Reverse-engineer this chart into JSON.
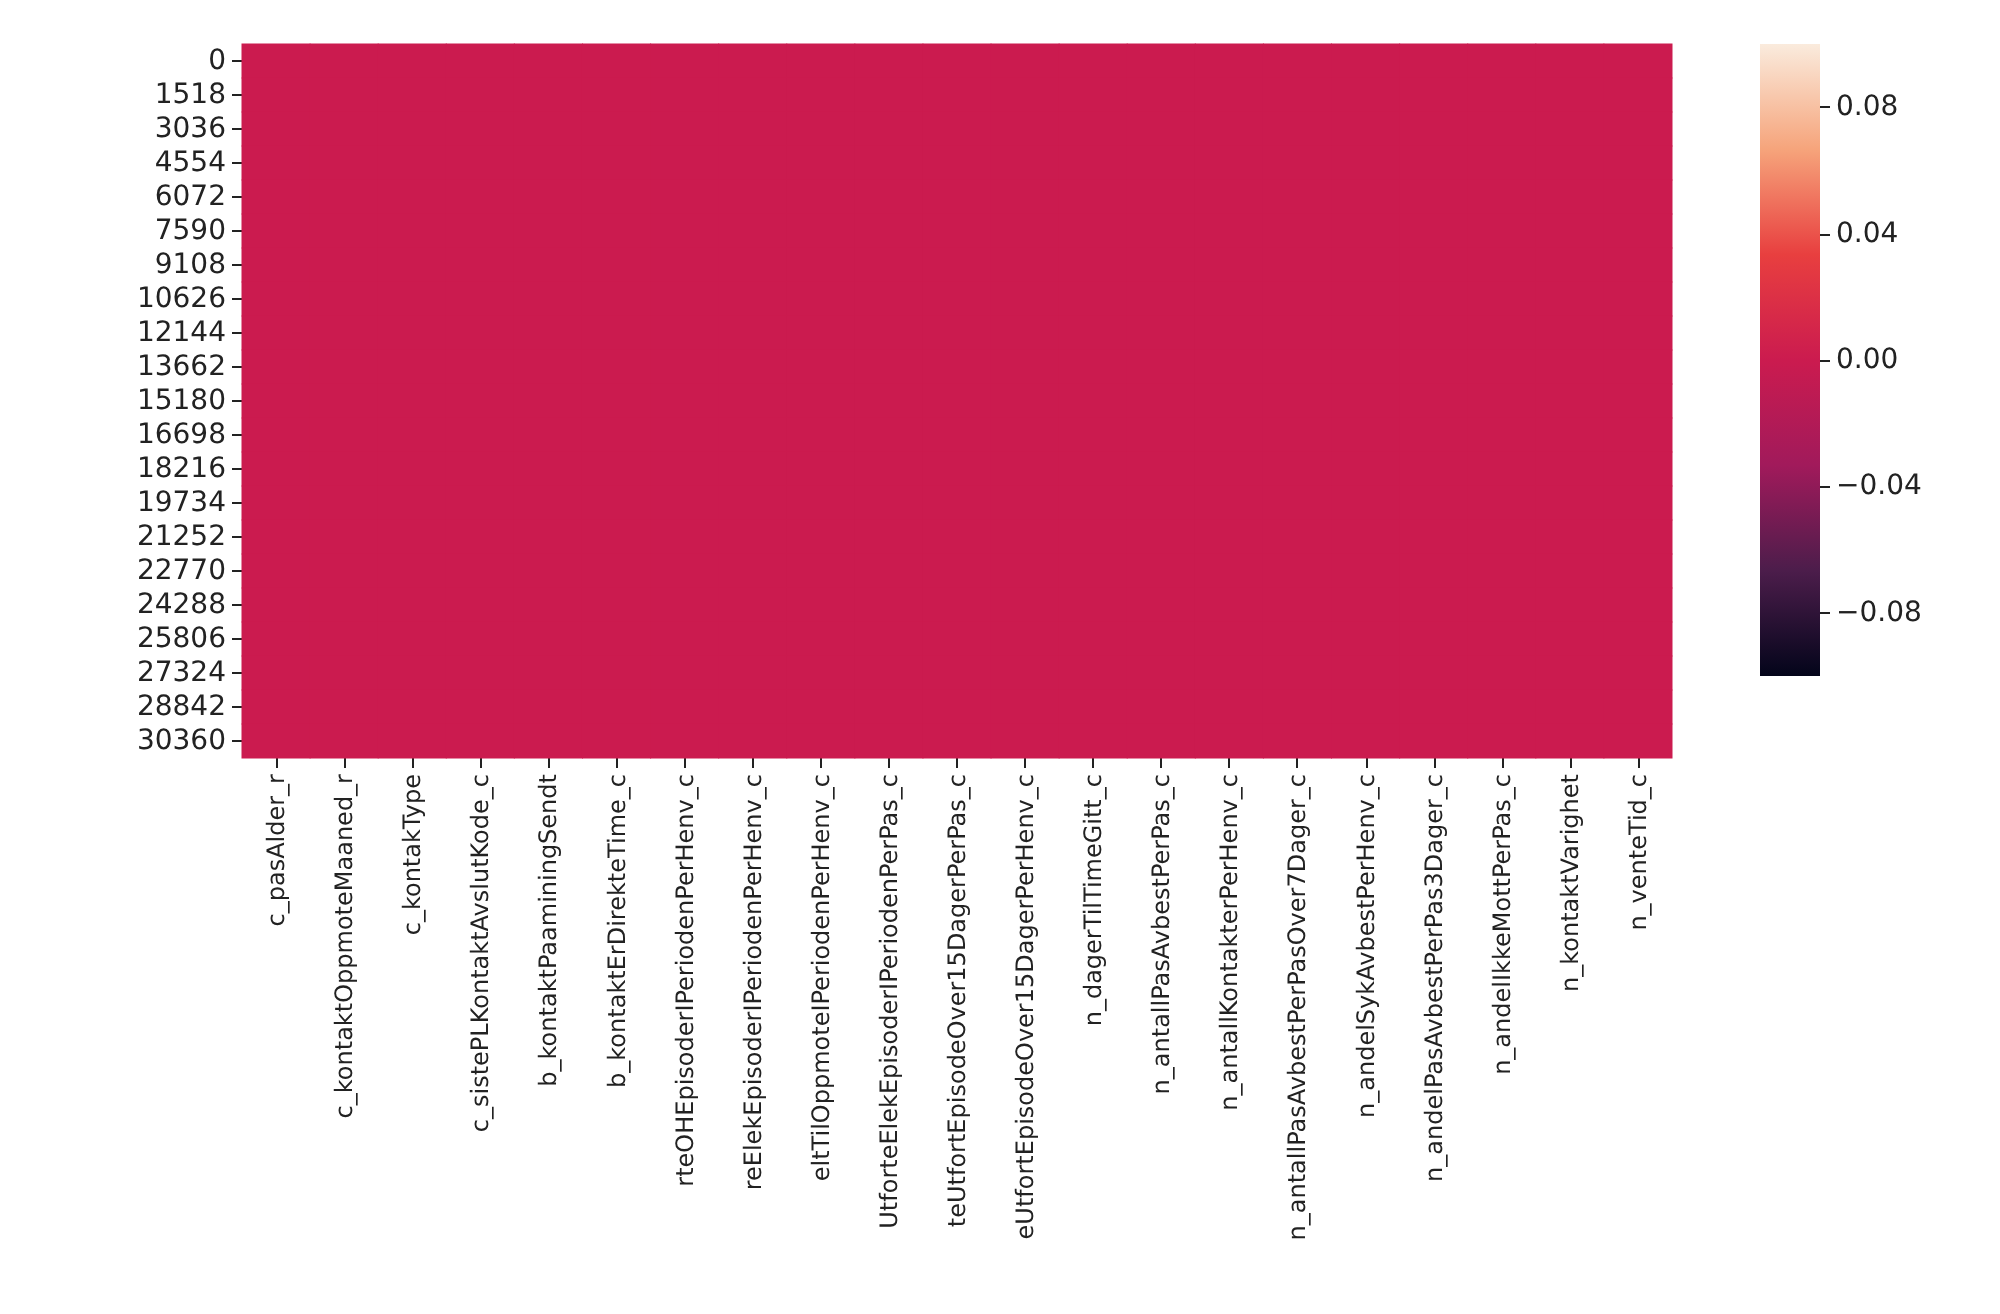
{
  "chart_data": {
    "type": "heatmap",
    "categories": [
      "c_pasAlder_r",
      "c_kontaktOppmoteMaaned_r",
      "c_kontakType",
      "c_sistePLKontaktAvslutKode_c",
      "b_kontaktPaaminingSendt",
      "b_kontaktErDirekteTime_c",
      "rteOHEpisoderIPeriodenPerHenv_c",
      "reElekEpisoderIPeriodenPerHenv_c",
      "eltTilOppmoteIPeriodenPerHenv_c",
      "UtforteElekEpisoderIPeriodenPerPas_c",
      "teUtfortEpisodeOver15DagerPerPas_c",
      "eUtfortEpisodeOver15DagerPerHenv_c",
      "n_dagerTilTimeGitt_c",
      "n_antallPasAvbestPerPas_c",
      "n_antallKontakterPerHenv_c",
      "n_antallPasAvbestPerPasOver7Dager_c",
      "n_andelSykAvbestPerHenv_c",
      "n_andelPasAvbestPerPas3Dager_c",
      "n_andelIkkeMottPerPas_c",
      "n_kontaktVarighet",
      "n_venteTid_c"
    ],
    "y_categories": [
      "0",
      "1518",
      "3036",
      "4554",
      "6072",
      "7590",
      "9108",
      "10626",
      "12144",
      "13662",
      "15180",
      "16698",
      "18216",
      "19734",
      "21252",
      "22770",
      "24288",
      "25806",
      "27324",
      "28842",
      "30360"
    ],
    "cells": [
      [
        0,
        0,
        0,
        0,
        0,
        0,
        0,
        0,
        0,
        0,
        0,
        0,
        0,
        0,
        0,
        0,
        0,
        0,
        0,
        0,
        0
      ],
      [
        0,
        0,
        0,
        0,
        0,
        0,
        0,
        0,
        0,
        0,
        0,
        0,
        0,
        0,
        0,
        0,
        0,
        0,
        0,
        0,
        0
      ],
      [
        0,
        0,
        0,
        0,
        0,
        0,
        0,
        0,
        0,
        0,
        0,
        0,
        0,
        0,
        0,
        0,
        0,
        0,
        0,
        0,
        0
      ],
      [
        0,
        0,
        0,
        0,
        0,
        0,
        0,
        0,
        0,
        0,
        0,
        0,
        0,
        0,
        0,
        0,
        0,
        0,
        0,
        0,
        0
      ],
      [
        0,
        0,
        0,
        0,
        0,
        0,
        0,
        0,
        0,
        0,
        0,
        0,
        0,
        0,
        0,
        0,
        0,
        0,
        0,
        0,
        0
      ],
      [
        0,
        0,
        0,
        0,
        0,
        0,
        0,
        0,
        0,
        0,
        0,
        0,
        0,
        0,
        0,
        0,
        0,
        0,
        0,
        0,
        0
      ],
      [
        0,
        0,
        0,
        0,
        0,
        0,
        0,
        0,
        0,
        0,
        0,
        0,
        0,
        0,
        0,
        0,
        0,
        0,
        0,
        0,
        0
      ],
      [
        0,
        0,
        0,
        0,
        0,
        0,
        0,
        0,
        0,
        0,
        0,
        0,
        0,
        0,
        0,
        0,
        0,
        0,
        0,
        0,
        0
      ],
      [
        0,
        0,
        0,
        0,
        0,
        0,
        0,
        0,
        0,
        0,
        0,
        0,
        0,
        0,
        0,
        0,
        0,
        0,
        0,
        0,
        0
      ],
      [
        0,
        0,
        0,
        0,
        0,
        0,
        0,
        0,
        0,
        0,
        0,
        0,
        0,
        0,
        0,
        0,
        0,
        0,
        0,
        0,
        0
      ],
      [
        0,
        0,
        0,
        0,
        0,
        0,
        0,
        0,
        0,
        0,
        0,
        0,
        0,
        0,
        0,
        0,
        0,
        0,
        0,
        0,
        0
      ],
      [
        0,
        0,
        0,
        0,
        0,
        0,
        0,
        0,
        0,
        0,
        0,
        0,
        0,
        0,
        0,
        0,
        0,
        0,
        0,
        0,
        0
      ],
      [
        0,
        0,
        0,
        0,
        0,
        0,
        0,
        0,
        0,
        0,
        0,
        0,
        0,
        0,
        0,
        0,
        0,
        0,
        0,
        0,
        0
      ],
      [
        0,
        0,
        0,
        0,
        0,
        0,
        0,
        0,
        0,
        0,
        0,
        0,
        0,
        0,
        0,
        0,
        0,
        0,
        0,
        0,
        0
      ],
      [
        0,
        0,
        0,
        0,
        0,
        0,
        0,
        0,
        0,
        0,
        0,
        0,
        0,
        0,
        0,
        0,
        0,
        0,
        0,
        0,
        0
      ],
      [
        0,
        0,
        0,
        0,
        0,
        0,
        0,
        0,
        0,
        0,
        0,
        0,
        0,
        0,
        0,
        0,
        0,
        0,
        0,
        0,
        0
      ],
      [
        0,
        0,
        0,
        0,
        0,
        0,
        0,
        0,
        0,
        0,
        0,
        0,
        0,
        0,
        0,
        0,
        0,
        0,
        0,
        0,
        0
      ],
      [
        0,
        0,
        0,
        0,
        0,
        0,
        0,
        0,
        0,
        0,
        0,
        0,
        0,
        0,
        0,
        0,
        0,
        0,
        0,
        0,
        0
      ],
      [
        0,
        0,
        0,
        0,
        0,
        0,
        0,
        0,
        0,
        0,
        0,
        0,
        0,
        0,
        0,
        0,
        0,
        0,
        0,
        0,
        0
      ],
      [
        0,
        0,
        0,
        0,
        0,
        0,
        0,
        0,
        0,
        0,
        0,
        0,
        0,
        0,
        0,
        0,
        0,
        0,
        0,
        0,
        0
      ],
      [
        0,
        0,
        0,
        0,
        0,
        0,
        0,
        0,
        0,
        0,
        0,
        0,
        0,
        0,
        0,
        0,
        0,
        0,
        0,
        0,
        0
      ]
    ],
    "clim": [
      -0.1,
      0.1
    ],
    "cticks": [
      {
        "value": -0.08,
        "label": "−0.08"
      },
      {
        "value": -0.04,
        "label": "−0.04"
      },
      {
        "value": 0,
        "label": "0.00"
      },
      0.04,
      0.08
    ]
  }
}
